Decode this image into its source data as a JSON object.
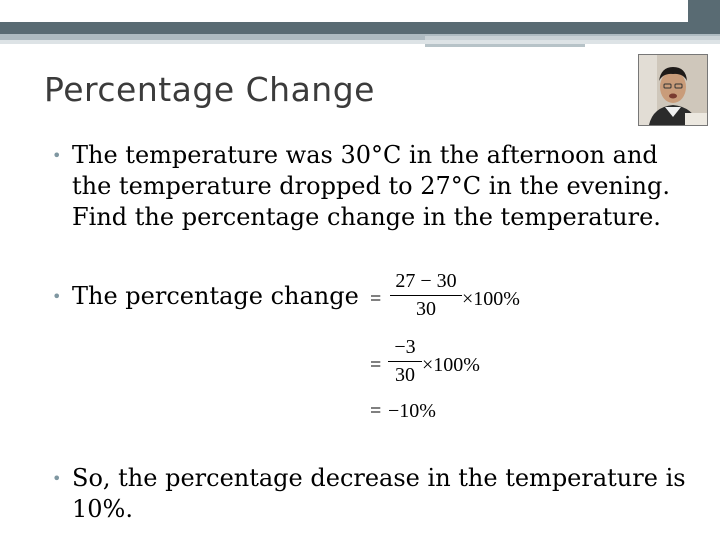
{
  "slide": {
    "title": "Percentage Change",
    "bullet1": {
      "line1": "The temperature was 30°C in the afternoon and",
      "line2": "the temperature dropped to 27°C in the evening.",
      "line3": "Find the percentage change in the temperature."
    },
    "bullet2": "The percentage change",
    "bullet3": {
      "line1": "So, the percentage decrease in the temperature is",
      "line2": "10%."
    },
    "bullet_marker": "•"
  },
  "math": {
    "step1": {
      "eq": "=",
      "numerator": "27 − 30",
      "denominator": "30",
      "tail": "×100%"
    },
    "step2": {
      "eq": "=",
      "numerator": "−3",
      "denominator": "30",
      "tail": "×100%"
    },
    "step3": {
      "eq": "=",
      "value": "−10%"
    }
  },
  "colors": {
    "band_dark": "#596b73",
    "band_mid": "#aebbc1",
    "bullet": "#7f97a1",
    "title": "#3b3b3b"
  },
  "icons": {
    "presenter_photo": "presenter-photo"
  }
}
